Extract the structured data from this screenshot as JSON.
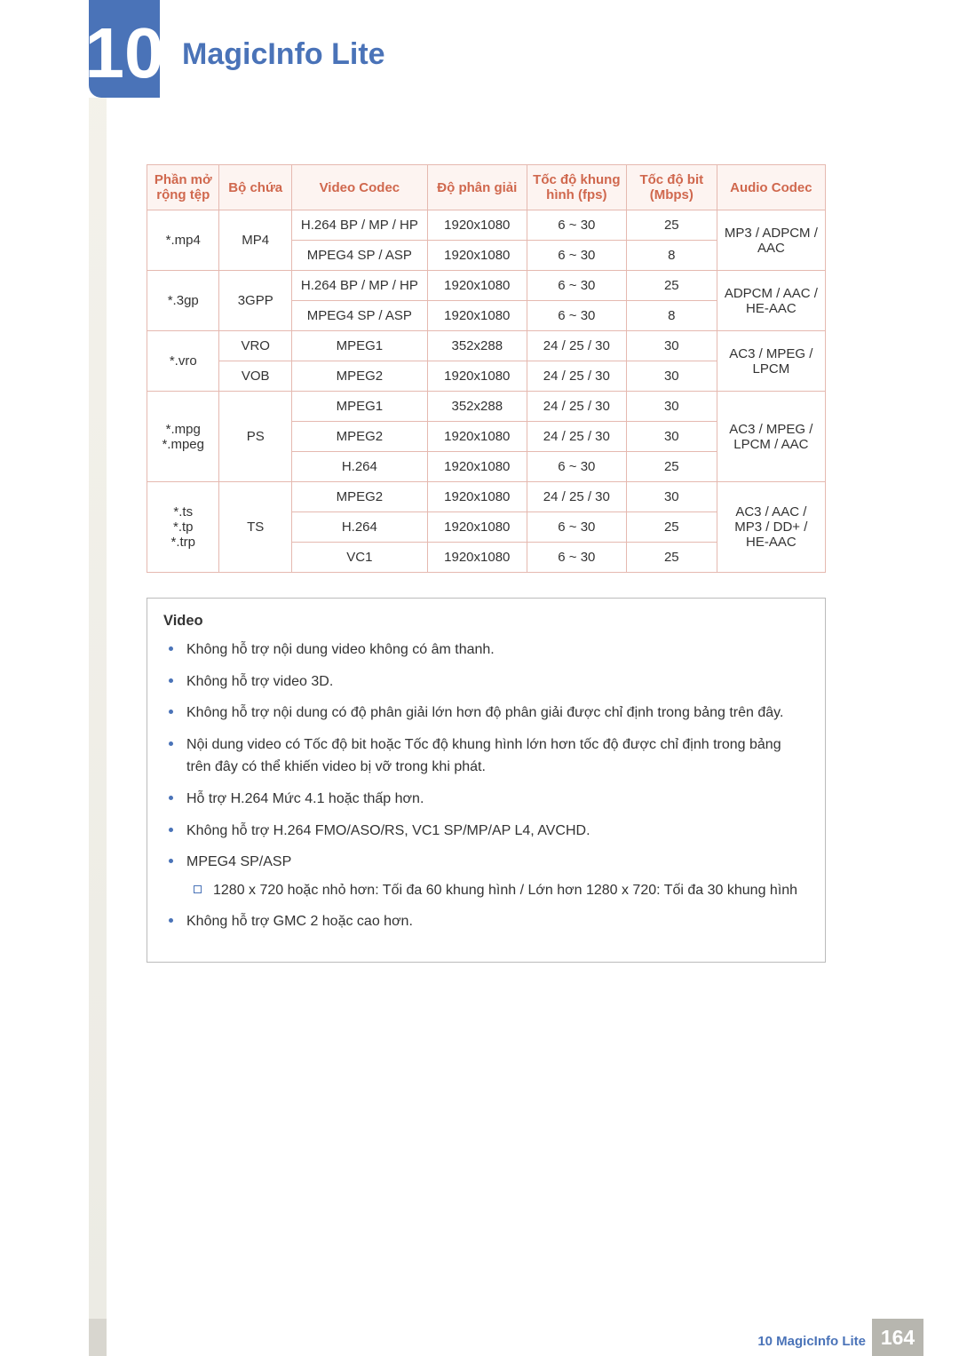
{
  "chapter": {
    "number": "10",
    "title": "MagicInfo Lite"
  },
  "table": {
    "header": {
      "ext": "Phần mở rộng tệp",
      "cont": "Bộ chứa",
      "codec": "Video Codec",
      "res": "Độ phân giải",
      "fps": "Tốc độ khung hình (fps)",
      "bit": "Tốc độ bit (Mbps)",
      "audio": "Audio Codec"
    },
    "groups": [
      {
        "ext": "*.mp4",
        "cont": "MP4",
        "rows": [
          {
            "codec": "H.264 BP / MP / HP",
            "res": "1920x1080",
            "fps": "6 ~ 30",
            "bit": "25"
          },
          {
            "codec": "MPEG4 SP / ASP",
            "res": "1920x1080",
            "fps": "6 ~ 30",
            "bit": "8"
          }
        ],
        "audio": "MP3 / ADPCM / AAC"
      },
      {
        "ext": "*.3gp",
        "cont": "3GPP",
        "rows": [
          {
            "codec": "H.264 BP / MP / HP",
            "res": "1920x1080",
            "fps": "6 ~ 30",
            "bit": "25"
          },
          {
            "codec": "MPEG4 SP / ASP",
            "res": "1920x1080",
            "fps": "6 ~ 30",
            "bit": "8"
          }
        ],
        "audio": "ADPCM / AAC / HE-AAC"
      },
      {
        "ext": "*.vro",
        "rows": [
          {
            "cont": "VRO",
            "codec": "MPEG1",
            "res": "352x288",
            "fps": "24 / 25 / 30",
            "bit": "30"
          },
          {
            "cont": "VOB",
            "codec": "MPEG2",
            "res": "1920x1080",
            "fps": "24 / 25 / 30",
            "bit": "30"
          }
        ],
        "audio": "AC3 / MPEG / LPCM"
      },
      {
        "ext": "*.mpg *.mpeg",
        "cont": "PS",
        "rows": [
          {
            "codec": "MPEG1",
            "res": "352x288",
            "fps": "24 / 25 / 30",
            "bit": "30"
          },
          {
            "codec": "MPEG2",
            "res": "1920x1080",
            "fps": "24 / 25 / 30",
            "bit": "30"
          },
          {
            "codec": "H.264",
            "res": "1920x1080",
            "fps": "6 ~ 30",
            "bit": "25"
          }
        ],
        "audio": "AC3 / MPEG / LPCM / AAC"
      },
      {
        "ext": "*.ts *.tp *.trp",
        "cont": "TS",
        "rows": [
          {
            "codec": "MPEG2",
            "res": "1920x1080",
            "fps": "24 / 25 / 30",
            "bit": "30"
          },
          {
            "codec": "H.264",
            "res": "1920x1080",
            "fps": "6 ~ 30",
            "bit": "25"
          },
          {
            "codec": "VC1",
            "res": "1920x1080",
            "fps": "6 ~ 30",
            "bit": "25"
          }
        ],
        "audio": "AC3 / AAC / MP3 / DD+ / HE-AAC"
      }
    ],
    "style": {
      "border_color": "#e5b9b0",
      "header_bg": "#fdf4f1",
      "header_text": "#d0684e",
      "cell_text": "#333333",
      "font_size": 15
    }
  },
  "notes": {
    "title": "Video",
    "items": [
      "Không hỗ trợ nội dung video không có âm thanh.",
      "Không hỗ trợ video 3D.",
      "Không hỗ trợ nội dung có độ phân giải lớn hơn độ phân giải được chỉ định trong bảng trên đây.",
      "Nội dung video có Tốc độ bit hoặc Tốc độ khung hình lớn hơn tốc độ được chỉ định trong bảng trên đây có thể khiến video bị vỡ trong khi phát.",
      "Hỗ trợ H.264 Mức 4.1 hoặc thấp hơn.",
      "Không hỗ trợ H.264 FMO/ASO/RS, VC1 SP/MP/AP L4, AVCHD.",
      "MPEG4 SP/ASP",
      "Không hỗ trợ GMC 2 hoặc cao hơn."
    ],
    "sub_after_index": 6,
    "sub": [
      "1280 x 720 hoặc nhỏ hơn: Tối đa 60 khung hình / Lớn hơn 1280 x 720: Tối đa 30 khung hình"
    ]
  },
  "footer": {
    "label": "10 MagicInfo Lite",
    "page": "164"
  },
  "colors": {
    "accent": "#4a73b8",
    "page_box": "#b7b6af",
    "sidebar": "#ecebe4"
  }
}
